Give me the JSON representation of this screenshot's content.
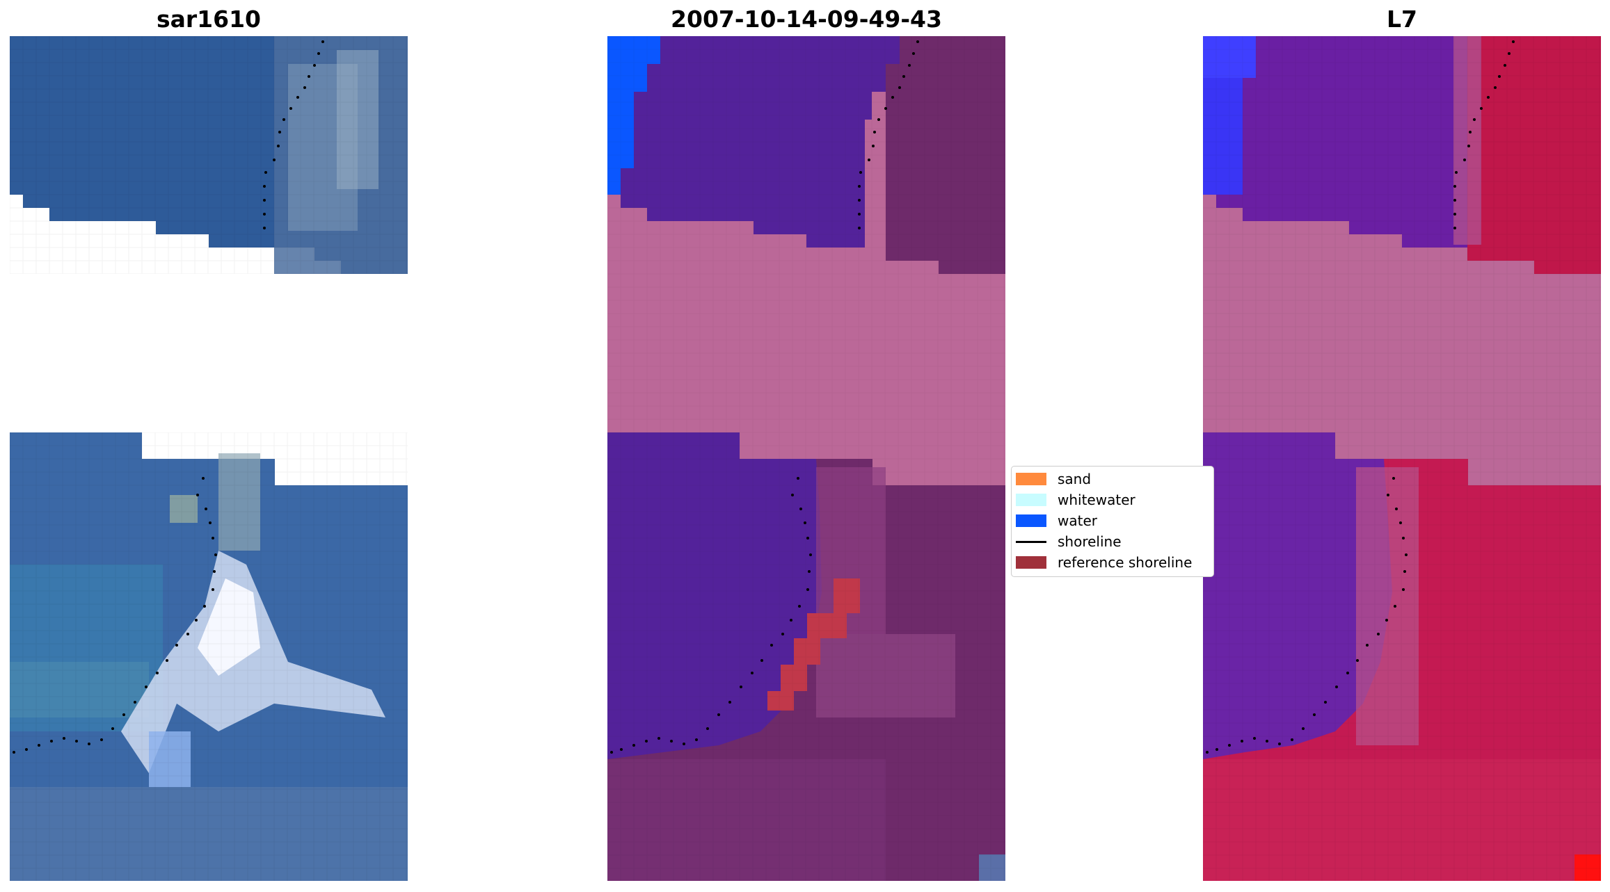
{
  "panels": [
    {
      "title": "sar1610"
    },
    {
      "title": "2007-10-14-09-49-43"
    },
    {
      "title": "L7"
    }
  ],
  "legend": {
    "items": [
      {
        "label": "sand",
        "color": "#ff8a3d",
        "kind": "patch"
      },
      {
        "label": "whitewater",
        "color": "#c8fcff",
        "kind": "patch"
      },
      {
        "label": "water",
        "color": "#0a57ff",
        "kind": "patch"
      },
      {
        "label": "shoreline",
        "color": "#000000",
        "kind": "line"
      },
      {
        "label": "reference shoreline",
        "color": "#a0303a",
        "kind": "patch"
      }
    ]
  },
  "colors": {
    "rgb_water": "#2c5c9a",
    "classified_water": "#53229a",
    "classified_land": "#6e2a6a",
    "nodata_band": "#bb6898",
    "mndwi_land": "#c0174a"
  }
}
